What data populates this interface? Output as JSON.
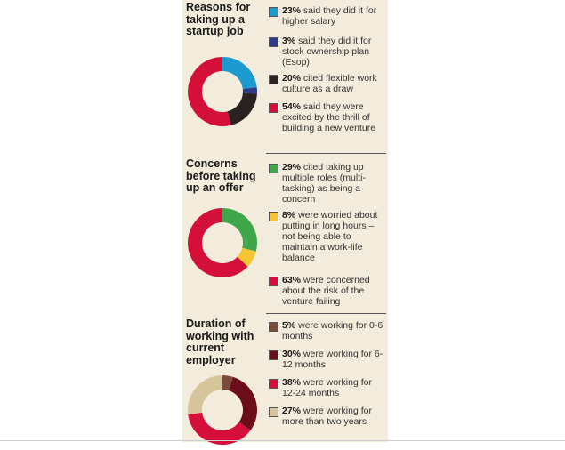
{
  "chart_data": [
    {
      "type": "pie",
      "title": "Reasons for taking up a startup job",
      "categories": [
        "said they did it for higher salary",
        "said they did it for stock ownership plan (Esop)",
        "cited flexible work culture as a draw",
        "said they were excited by the thrill of building a new venture"
      ],
      "values": [
        23,
        3,
        20,
        54
      ],
      "value_labels": [
        "23%",
        "3%",
        "20%",
        "54%"
      ],
      "colors": [
        "#1b9bcf",
        "#2b3a8c",
        "#2a2220",
        "#d4103a"
      ]
    },
    {
      "type": "pie",
      "title": "Concerns before taking up an offer",
      "categories": [
        "cited taking up multiple roles (multi-tasking) as being a concern",
        "were worried about putting in long hours – not being able to maintain a work-life balance",
        "were concerned about the risk of the venture failing"
      ],
      "values": [
        29,
        8,
        63
      ],
      "value_labels": [
        "29%",
        "8%",
        "63%"
      ],
      "colors": [
        "#3fa64a",
        "#f4c531",
        "#d4103a"
      ]
    },
    {
      "type": "pie",
      "title": "Duration of working with current employer",
      "categories": [
        "were working for 0-6 months",
        "were working for 6-12 months",
        "were working for 12-24 months",
        "were working for more than two years"
      ],
      "values": [
        5,
        30,
        38,
        27
      ],
      "value_labels": [
        "5%",
        "30%",
        "38%",
        "27%"
      ],
      "colors": [
        "#7a4a3a",
        "#6b0d1a",
        "#d4103a",
        "#d6c49a"
      ]
    }
  ]
}
